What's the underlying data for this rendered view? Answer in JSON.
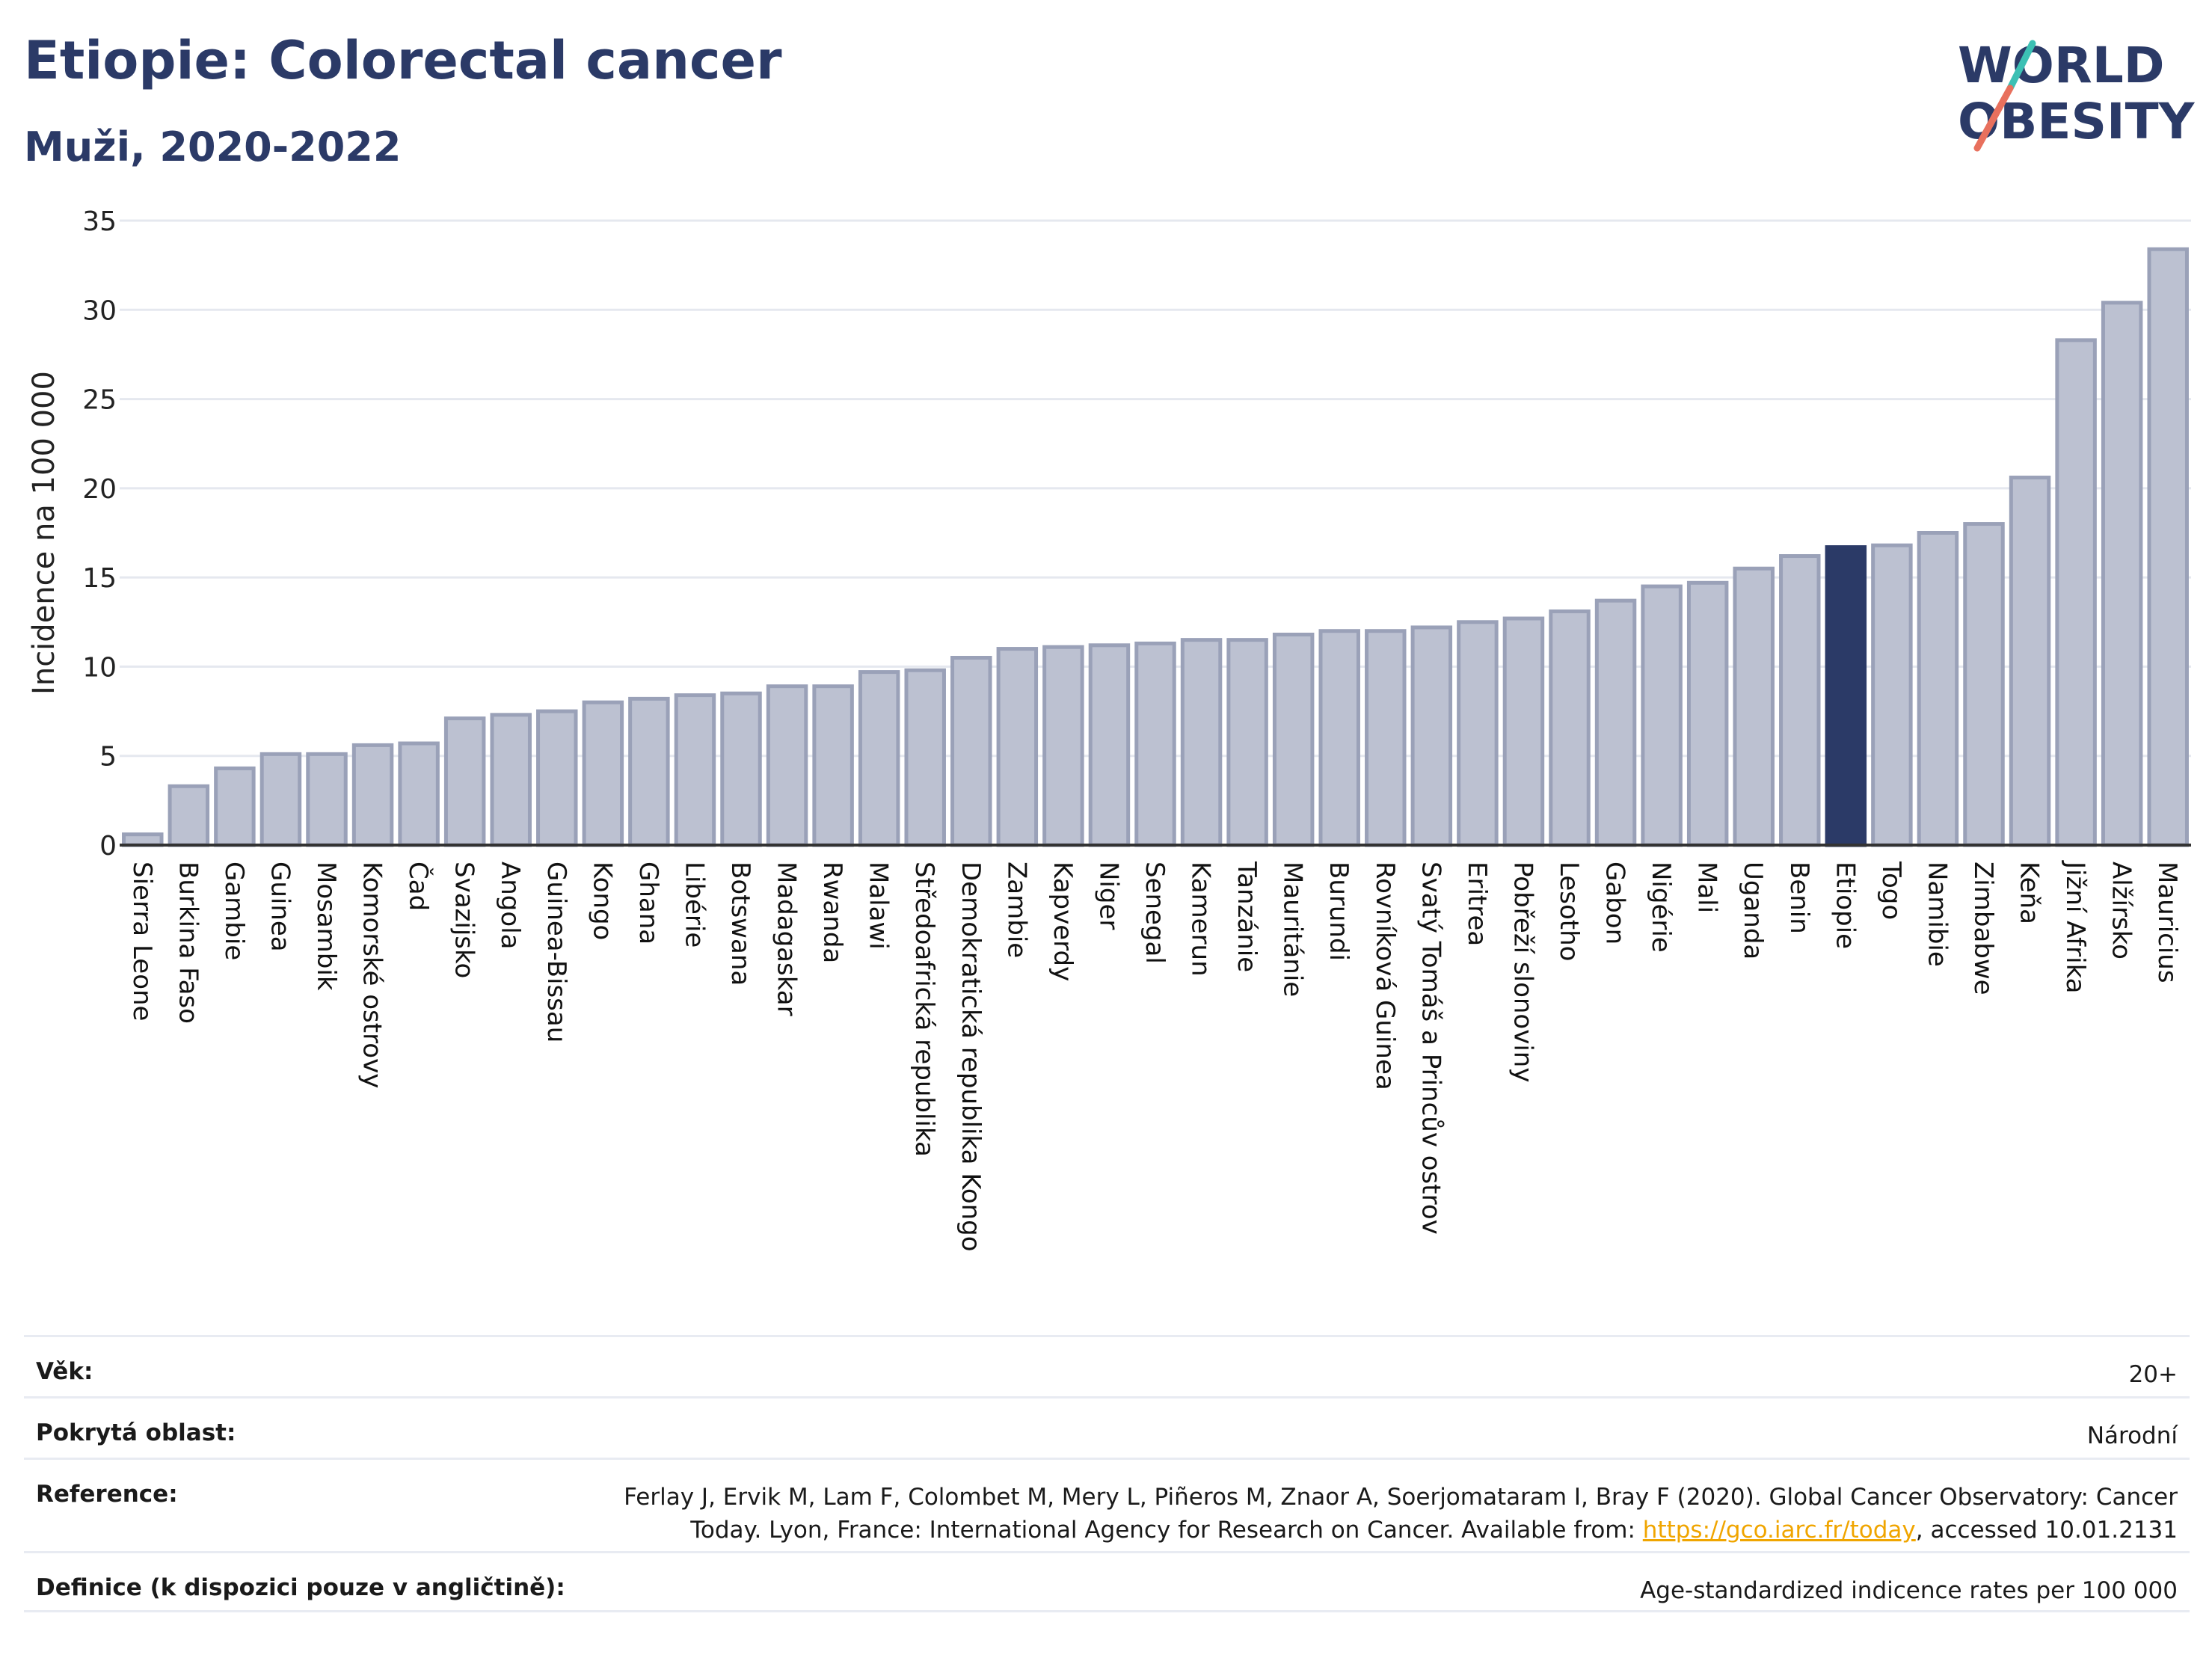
{
  "header": {
    "title": "Etiopie: Colorectal cancer",
    "subtitle": "Muži, 2020-2022"
  },
  "logo": {
    "line1": "WORLD",
    "line2": "OBESITY"
  },
  "chart_data": {
    "type": "bar",
    "title": "Etiopie: Colorectal cancer",
    "subtitle": "Muži, 2020-2022",
    "xlabel": "",
    "ylabel": "Incidence na 100 000",
    "ylim": [
      0,
      35
    ],
    "yticks": [
      0,
      5,
      10,
      15,
      20,
      25,
      30,
      35
    ],
    "grid": true,
    "highlight": "Etiopie",
    "colors": {
      "bar": "#bcc1d1",
      "bar_edge": "#9aa1b8",
      "highlight": "#2b3a67",
      "grid": "#e5e8ef",
      "axis": "#333333"
    },
    "categories": [
      "Sierra Leone",
      "Burkina Faso",
      "Gambie",
      "Guinea",
      "Mosambik",
      "Komorské ostrovy",
      "Čad",
      "Svazijsko",
      "Angola",
      "Guinea-Bissau",
      "Kongo",
      "Ghana",
      "Libérie",
      "Botswana",
      "Madagaskar",
      "Rwanda",
      "Malawi",
      "Středoafrická republika",
      "Demokratická republika Kongo",
      "Zambie",
      "Kapverdy",
      "Niger",
      "Senegal",
      "Kamerun",
      "Tanzánie",
      "Mauritánie",
      "Burundi",
      "Rovníková Guinea",
      "Svatý Tomáš a Princův ostrov",
      "Eritrea",
      "Pobřeží slonoviny",
      "Lesotho",
      "Gabon",
      "Nigérie",
      "Mali",
      "Uganda",
      "Benin",
      "Etiopie",
      "Togo",
      "Namibie",
      "Zimbabwe",
      "Keňa",
      "Jižní Afrika",
      "Alžírsko",
      "Mauricius"
    ],
    "values": [
      0.6,
      3.3,
      4.3,
      5.1,
      5.1,
      5.6,
      5.7,
      7.1,
      7.3,
      7.5,
      8.0,
      8.2,
      8.4,
      8.5,
      8.9,
      8.9,
      9.7,
      9.8,
      10.5,
      11.0,
      11.1,
      11.2,
      11.3,
      11.5,
      11.5,
      11.8,
      12.0,
      12.0,
      12.2,
      12.5,
      12.7,
      13.1,
      13.7,
      14.5,
      14.7,
      15.5,
      16.2,
      16.7,
      16.8,
      17.5,
      18.0,
      20.6,
      28.3,
      30.4,
      33.4
    ]
  },
  "info": {
    "age_label": "Věk:",
    "age_value": "20+",
    "area_label": "Pokrytá oblast:",
    "area_value": "Národní",
    "reference_label": "Reference:",
    "reference_line1": "Ferlay J, Ervik M, Lam F, Colombet M, Mery L, Piñeros M, Znaor A, Soerjomataram I, Bray F (2020). Global Cancer Observatory: Cancer",
    "reference_line2_pre": "Today. Lyon, France: International Agency for Research on Cancer. Available from: ",
    "reference_link": "https://gco.iarc.fr/today",
    "reference_line2_post": ", accessed 10.01.2131",
    "definition_label": "Definice (k dispozici pouze v angličtině):",
    "definition_value": "Age-standardized indicence rates per 100 000"
  }
}
